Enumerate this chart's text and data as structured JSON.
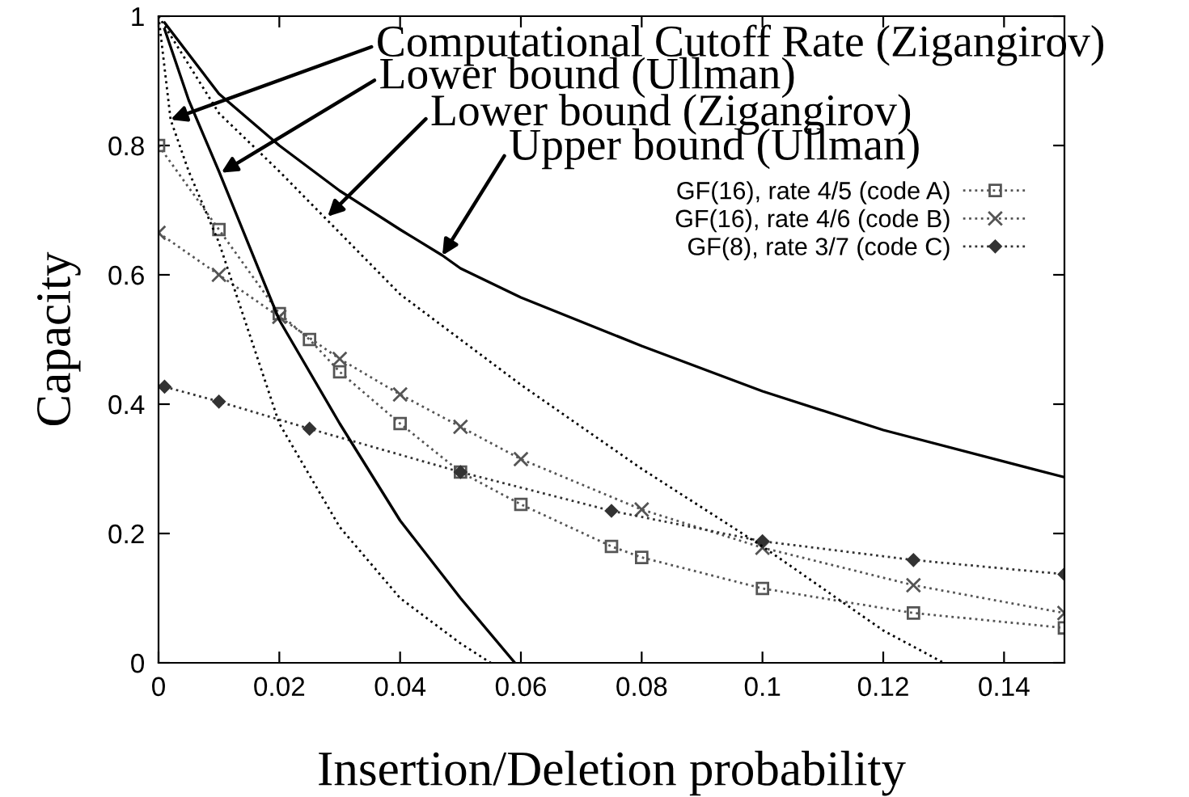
{
  "chart_data": {
    "type": "line",
    "xlabel": "Insertion/Deletion probability",
    "ylabel": "Capacity",
    "xlim": [
      0,
      0.15
    ],
    "ylim": [
      0,
      1
    ],
    "xticks": [
      0,
      0.02,
      0.04,
      0.06,
      0.08,
      0.1,
      0.12,
      0.14
    ],
    "yticks": [
      0,
      0.2,
      0.4,
      0.6,
      0.8,
      1
    ],
    "grid": false,
    "legend": "top right",
    "series": [
      {
        "name": "GF(16), rate 4/5 (code A)",
        "color": "#555555",
        "marker": "square",
        "line_style": "dotted",
        "x": [
          0,
          0.01,
          0.02,
          0.025,
          0.03,
          0.04,
          0.05,
          0.06,
          0.075,
          0.08,
          0.1,
          0.125,
          0.15
        ],
        "values": [
          0.8,
          0.67,
          0.54,
          0.5,
          0.45,
          0.37,
          0.295,
          0.245,
          0.18,
          0.163,
          0.115,
          0.077,
          0.054
        ]
      },
      {
        "name": "GF(16), rate 4/6 (code B)",
        "color": "#555555",
        "marker": "cross",
        "line_style": "dotted",
        "x": [
          0,
          0.01,
          0.02,
          0.03,
          0.04,
          0.05,
          0.06,
          0.08,
          0.1,
          0.125,
          0.15
        ],
        "values": [
          0.665,
          0.6,
          0.535,
          0.47,
          0.415,
          0.365,
          0.315,
          0.237,
          0.178,
          0.12,
          0.077
        ]
      },
      {
        "name": "GF(8), rate 3/7 (code C)",
        "color": "#333333",
        "marker": "diamond",
        "line_style": "dotted",
        "x": [
          0.001,
          0.01,
          0.025,
          0.05,
          0.075,
          0.1,
          0.125,
          0.15
        ],
        "values": [
          0.427,
          0.404,
          0.362,
          0.295,
          0.235,
          0.188,
          0.159,
          0.137
        ]
      },
      {
        "color": "#000000",
        "marker": "none",
        "line_style": "dotted",
        "x": [
          0,
          0.002,
          0.005,
          0.01,
          0.015,
          0.02,
          0.03,
          0.04,
          0.05,
          0.055
        ],
        "values": [
          1.0,
          0.84,
          0.76,
          0.65,
          0.51,
          0.37,
          0.21,
          0.1,
          0.03,
          0
        ]
      },
      {
        "color": "#000000",
        "marker": "none",
        "line_style": "solid",
        "x": [
          0.001,
          0.005,
          0.01,
          0.02,
          0.03,
          0.04,
          0.05,
          0.059
        ],
        "values": [
          0.98,
          0.87,
          0.76,
          0.53,
          0.37,
          0.22,
          0.1,
          0
        ]
      },
      {
        "color": "#000000",
        "marker": "none",
        "line_style": "dotted",
        "x": [
          0,
          0.01,
          0.02,
          0.04,
          0.06,
          0.08,
          0.1,
          0.12,
          0.13
        ],
        "values": [
          1.0,
          0.85,
          0.76,
          0.57,
          0.43,
          0.3,
          0.18,
          0.05,
          0
        ]
      },
      {
        "color": "#000000",
        "marker": "none",
        "line_style": "solid",
        "x": [
          0.001,
          0.01,
          0.02,
          0.03,
          0.04,
          0.047,
          0.05,
          0.06,
          0.08,
          0.1,
          0.12,
          0.15
        ],
        "values": [
          0.99,
          0.88,
          0.8,
          0.73,
          0.67,
          0.63,
          0.61,
          0.565,
          0.49,
          0.42,
          0.36,
          0.287
        ]
      }
    ],
    "annotations": [
      {
        "text": "Computational Cutoff Rate (Zigangirov)",
        "x": 0.002,
        "y": 0.84
      },
      {
        "text": "Lower bound (Ullman)",
        "x": 0.0104,
        "y": 0.758
      },
      {
        "text": "Lower bound (Zigangirov)",
        "x": 0.028,
        "y": 0.69
      },
      {
        "text": "Upper bound (Ullman)",
        "x": 0.047,
        "y": 0.63
      }
    ]
  }
}
